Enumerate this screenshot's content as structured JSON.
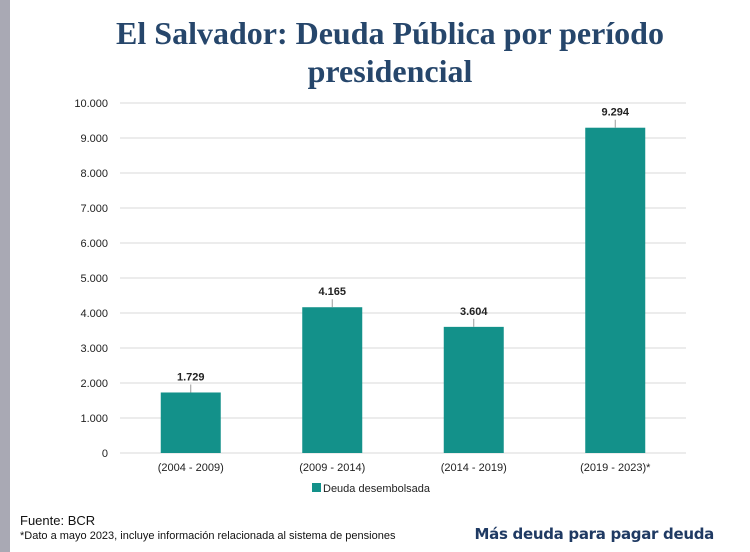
{
  "title": "El Salvador: Deuda Pública por período presidencial",
  "footer": {
    "source": "Fuente: BCR",
    "note": "*Dato a mayo 2023, incluye información relacionada al sistema de pensiones",
    "tagline": "Más deuda para pagar deuda"
  },
  "colors": {
    "bar": "#13918a",
    "title": "#26466b",
    "grid": "#d9d9d9"
  },
  "chart_data": {
    "type": "bar",
    "categories": [
      "(2004 - 2009)",
      "(2009 - 2014)",
      "(2014 - 2019)",
      "(2019 - 2023)*"
    ],
    "series": [
      {
        "name": "Deuda desembolsada",
        "values": [
          1729,
          4165,
          3604,
          9294
        ]
      }
    ],
    "data_labels": [
      "1.729",
      "4.165",
      "3.604",
      "9.294"
    ],
    "ylim": [
      0,
      10000
    ],
    "yticks": [
      0,
      1000,
      2000,
      3000,
      4000,
      5000,
      6000,
      7000,
      8000,
      9000,
      10000
    ],
    "ytick_labels": [
      "0",
      "1.000",
      "2.000",
      "3.000",
      "4.000",
      "5.000",
      "6.000",
      "7.000",
      "8.000",
      "9.000",
      "10.000"
    ],
    "grid": true,
    "legend": "bottom"
  }
}
